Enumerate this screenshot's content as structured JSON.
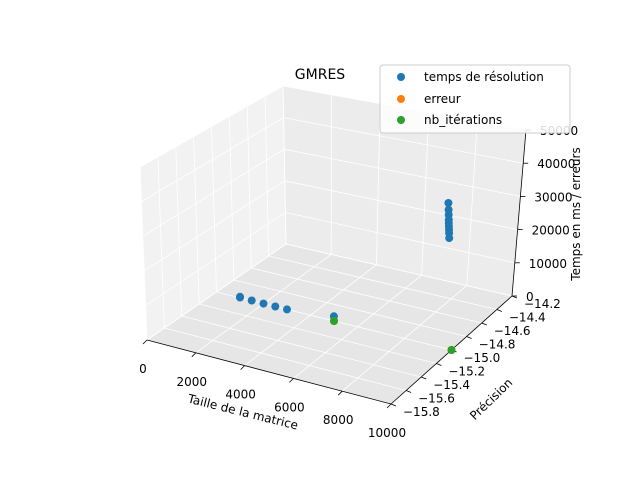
{
  "chart_data": {
    "type": "scatter",
    "projection": "3d",
    "title": "GMRES",
    "xlabel": "Taille de la matrice",
    "ylabel": "Précision",
    "zlabel": "Temps en ms / erreurs",
    "xlim": [
      0,
      10000
    ],
    "ylim": [
      -15.8,
      -14.2
    ],
    "zlim": [
      0,
      50000
    ],
    "x_ticks": [
      "0",
      "2000",
      "4000",
      "6000",
      "8000",
      "10000"
    ],
    "y_ticks": [
      "−15.8",
      "−15.6",
      "−15.4",
      "−15.2",
      "−15.0",
      "−14.8",
      "−14.6",
      "−14.4",
      "−14.2"
    ],
    "z_ticks": [
      "0",
      "10000",
      "20000",
      "30000",
      "40000",
      "50000"
    ],
    "grid": true,
    "legend_position": "top-right",
    "series": [
      {
        "name": "temps de résolution",
        "color": "#1f77b4",
        "points": [
          {
            "x": 10000,
            "y": -15.0,
            "z": 44000
          },
          {
            "x": 10000,
            "y": -15.0,
            "z": 42000
          },
          {
            "x": 10000,
            "y": -15.0,
            "z": 40500
          },
          {
            "x": 10000,
            "y": -15.0,
            "z": 39000
          },
          {
            "x": 10000,
            "y": -15.0,
            "z": 38000
          },
          {
            "x": 10000,
            "y": -15.0,
            "z": 37000
          },
          {
            "x": 10000,
            "y": -15.0,
            "z": 36000
          },
          {
            "x": 10000,
            "y": -15.0,
            "z": 35000
          },
          {
            "x": 10000,
            "y": -15.0,
            "z": 33500
          },
          {
            "x": 5000,
            "y": -15.0,
            "z": 1400
          },
          {
            "x": 1000,
            "y": -15.0,
            "z": 300
          },
          {
            "x": 1000,
            "y": -15.0,
            "z": 100
          },
          {
            "x": 1500,
            "y": -15.0,
            "z": 50
          },
          {
            "x": 2000,
            "y": -15.0,
            "z": 0
          },
          {
            "x": 2500,
            "y": -15.0,
            "z": 0
          },
          {
            "x": 3000,
            "y": -15.0,
            "z": 0
          }
        ]
      },
      {
        "name": "erreur",
        "color": "#ff7f0e",
        "points": [
          {
            "x": 10000,
            "y": -15.0,
            "z": 0
          },
          {
            "x": 5000,
            "y": -15.0,
            "z": 0
          }
        ]
      },
      {
        "name": "nb_itérations",
        "color": "#2ca02c",
        "points": [
          {
            "x": 10000,
            "y": -15.0,
            "z": 0
          },
          {
            "x": 5000,
            "y": -15.0,
            "z": 0
          }
        ]
      }
    ]
  }
}
